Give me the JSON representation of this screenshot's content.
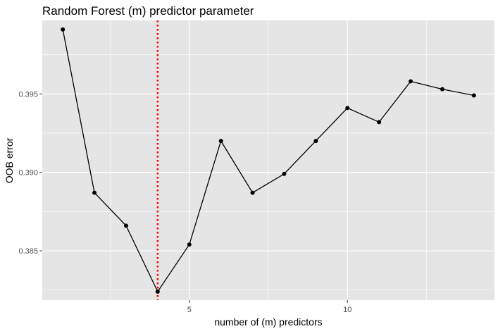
{
  "chart_data": {
    "type": "line",
    "title": "Random Forest (m) predictor parameter",
    "xlabel": "number of (m) predictors",
    "ylabel": "OOB error",
    "x": [
      1,
      2,
      3,
      4,
      5,
      6,
      7,
      8,
      9,
      10,
      11,
      12,
      13,
      14
    ],
    "y": [
      0.3991,
      0.3887,
      0.3866,
      0.3824,
      0.3854,
      0.392,
      0.3887,
      0.3899,
      0.392,
      0.3941,
      0.3932,
      0.3958,
      0.3953,
      0.3949
    ],
    "xlim": [
      0.35,
      14.65
    ],
    "ylim": [
      0.38186,
      0.39968
    ],
    "x_ticks": [
      5,
      10
    ],
    "x_tick_labels": [
      "5",
      "10"
    ],
    "x_minor_ticks": [
      2.5,
      7.5,
      12.5
    ],
    "y_ticks": [
      0.385,
      0.39,
      0.395
    ],
    "y_tick_labels": [
      "0.385",
      "0.390",
      "0.395"
    ],
    "y_minor_ticks": [
      0.3825,
      0.3875,
      0.3925,
      0.3975
    ],
    "reference_line": {
      "axis": "x",
      "value": 4,
      "style": "dotted",
      "color": "#ff0000"
    },
    "grid": true,
    "colors": {
      "panel_background": "#e5e5e5",
      "grid": "#ffffff",
      "line": "#000000",
      "points": "#000000",
      "axis_text": "#4d4d4d",
      "title_text": "#000000"
    }
  }
}
